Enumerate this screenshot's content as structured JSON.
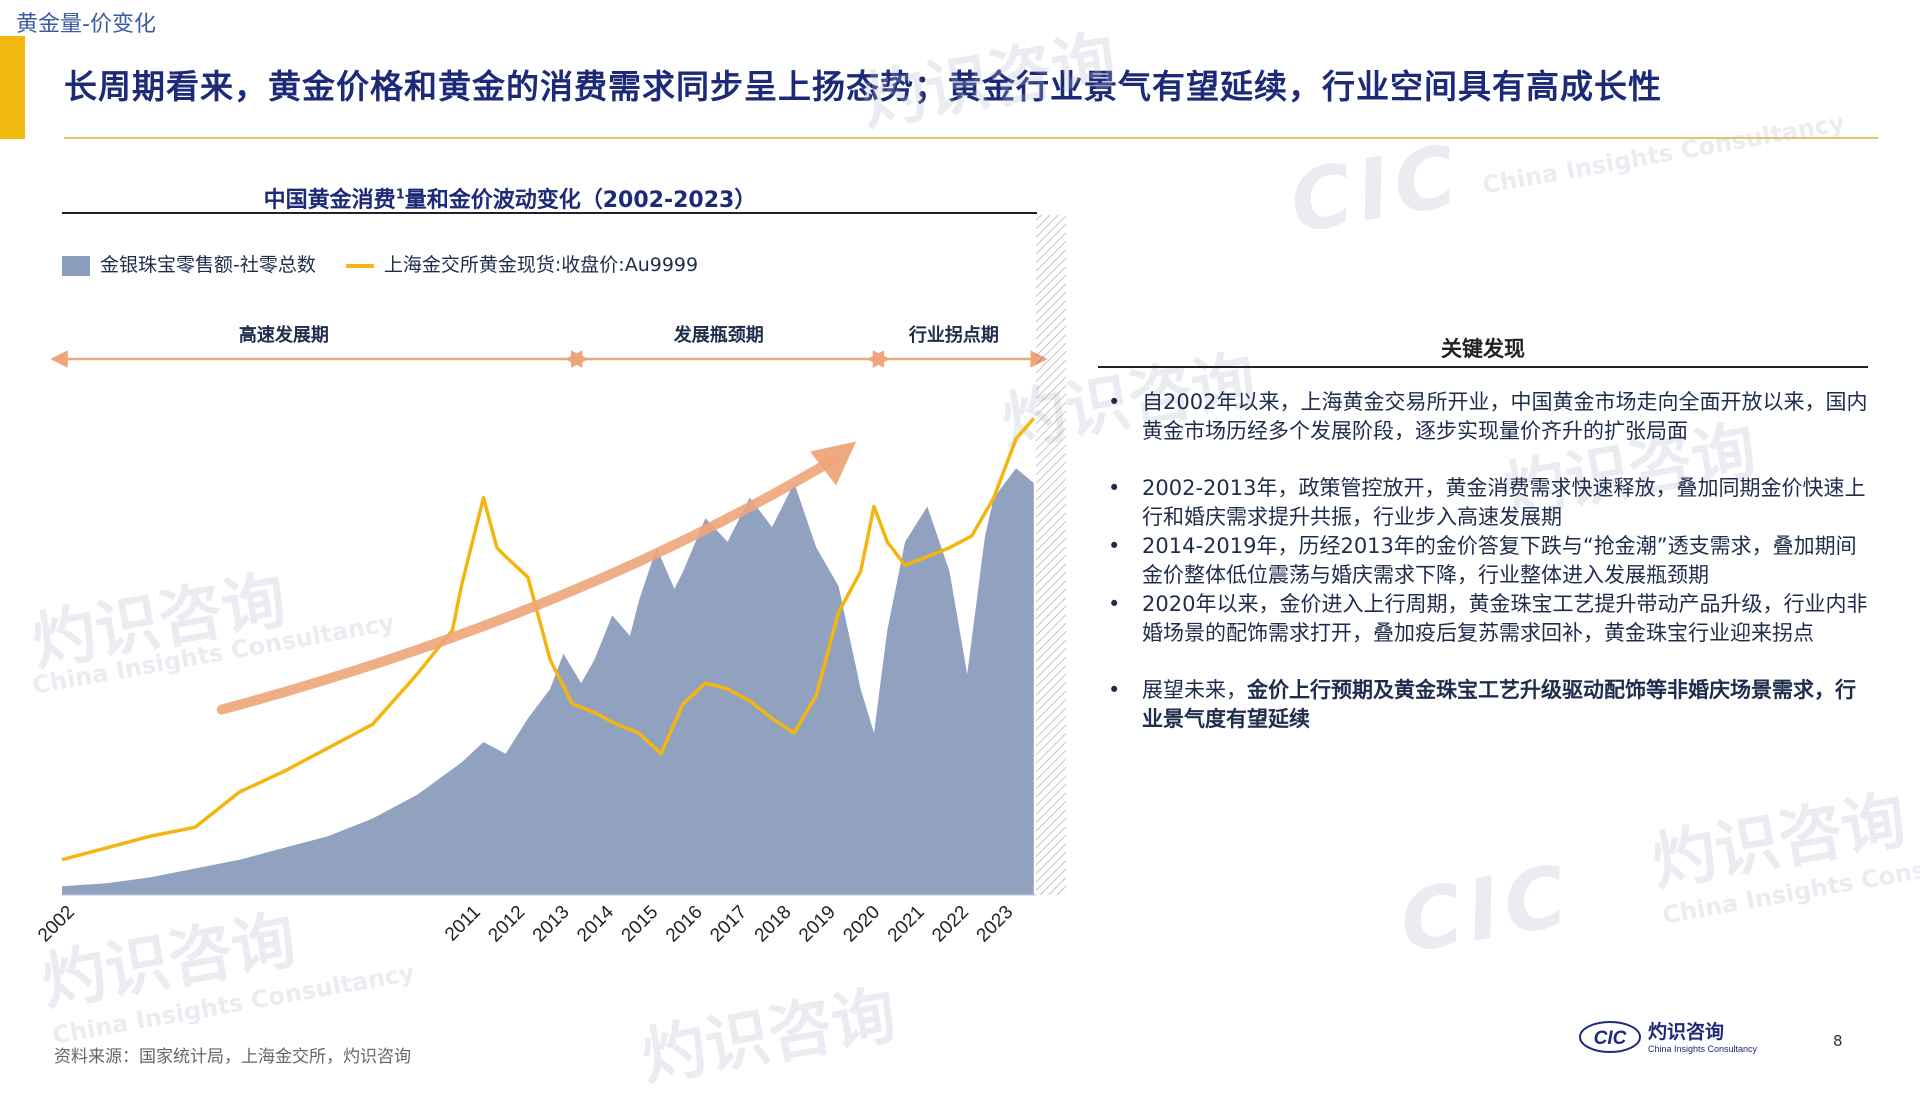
{
  "section_tag": "黄金量-价变化",
  "headline": "长周期看来，黄金价格和黄金的消费需求同步呈上扬态势；黄金行业景气有望延续，行业空间具有高成长性",
  "chart_title": {
    "main": "中国黄金消费",
    "sup": "1",
    "rest": "量和金价波动变化（2002-2023）"
  },
  "chart_data": {
    "type": "area",
    "title": "中国黄金消费1量和金价波动变化（2002-2023）",
    "xlabel": "",
    "ylabel": "",
    "x_ticks": [
      "2002",
      "2011",
      "2012",
      "2013",
      "2014",
      "2015",
      "2016",
      "2017",
      "2018",
      "2019",
      "2020",
      "2021",
      "2022",
      "2023"
    ],
    "series": [
      {
        "name": "金银珠宝零售额-社零总数",
        "type": "area",
        "color": "#8a9dbd",
        "points": [
          [
            2002,
            3
          ],
          [
            2003,
            4
          ],
          [
            2004,
            6
          ],
          [
            2005,
            9
          ],
          [
            2006,
            12
          ],
          [
            2007,
            16
          ],
          [
            2008,
            20
          ],
          [
            2009,
            26
          ],
          [
            2010,
            34
          ],
          [
            2011,
            45
          ],
          [
            2011.5,
            52
          ],
          [
            2012,
            48
          ],
          [
            2012.5,
            60
          ],
          [
            2013,
            70
          ],
          [
            2013.3,
            82
          ],
          [
            2013.7,
            72
          ],
          [
            2014,
            80
          ],
          [
            2014.4,
            95
          ],
          [
            2014.8,
            88
          ],
          [
            2015,
            100
          ],
          [
            2015.4,
            118
          ],
          [
            2015.8,
            104
          ],
          [
            2016,
            110
          ],
          [
            2016.5,
            128
          ],
          [
            2017,
            120
          ],
          [
            2017.5,
            135
          ],
          [
            2018,
            125
          ],
          [
            2018.5,
            140
          ],
          [
            2019,
            118
          ],
          [
            2019.5,
            105
          ],
          [
            2020,
            70
          ],
          [
            2020.3,
            55
          ],
          [
            2020.6,
            90
          ],
          [
            2021,
            120
          ],
          [
            2021.5,
            132
          ],
          [
            2022,
            110
          ],
          [
            2022.4,
            75
          ],
          [
            2022.8,
            122
          ],
          [
            2023,
            135
          ],
          [
            2023.5,
            145
          ],
          [
            2023.9,
            140
          ]
        ]
      },
      {
        "name": "上海金交所黄金现货:收盘价:Au9999",
        "type": "line",
        "color": "#f2b60f",
        "points": [
          [
            2002,
            12
          ],
          [
            2003,
            16
          ],
          [
            2004,
            20
          ],
          [
            2005,
            23
          ],
          [
            2006,
            35
          ],
          [
            2007,
            42
          ],
          [
            2008,
            50
          ],
          [
            2009,
            58
          ],
          [
            2010,
            75
          ],
          [
            2010.8,
            90
          ],
          [
            2011,
            105
          ],
          [
            2011.5,
            135
          ],
          [
            2011.8,
            118
          ],
          [
            2012,
            115
          ],
          [
            2012.5,
            108
          ],
          [
            2013,
            80
          ],
          [
            2013.5,
            65
          ],
          [
            2014,
            62
          ],
          [
            2014.5,
            58
          ],
          [
            2015,
            55
          ],
          [
            2015.5,
            48
          ],
          [
            2016,
            65
          ],
          [
            2016.5,
            72
          ],
          [
            2017,
            70
          ],
          [
            2017.5,
            66
          ],
          [
            2018,
            60
          ],
          [
            2018.5,
            55
          ],
          [
            2019,
            68
          ],
          [
            2019.5,
            96
          ],
          [
            2020,
            110
          ],
          [
            2020.3,
            132
          ],
          [
            2020.6,
            120
          ],
          [
            2021,
            112
          ],
          [
            2021.5,
            115
          ],
          [
            2022,
            118
          ],
          [
            2022.5,
            122
          ],
          [
            2023,
            135
          ],
          [
            2023.5,
            155
          ],
          [
            2023.9,
            162
          ]
        ]
      }
    ],
    "y_range": [
      0,
      175
    ],
    "phases": [
      "高速发展期",
      "发展瓶颈期",
      "行业拐点期"
    ],
    "grid": false,
    "legend_position": "top-left"
  },
  "legend": {
    "area_label": "金银珠宝零售额-社零总数",
    "line_label": "上海金交所黄金现货:收盘价:Au9999"
  },
  "findings": {
    "title": "关键发现",
    "items": [
      {
        "text": "自2002年以来，上海黄金交易所开业，中国黄金市场走向全面开放以来，国内黄金市场历经多个发展阶段，逐步实现量价齐升的扩张局面",
        "gap": false
      },
      {
        "text": "2002-2013年，政策管控放开，黄金消费需求快速释放，叠加同期金价快速上行和婚庆需求提升共振，行业步入高速发展期",
        "gap": true
      },
      {
        "text": "2014-2019年，历经2013年的金价答复下跌与“抢金潮”透支需求，叠加期间金价整体低位震荡与婚庆需求下降，行业整体进入发展瓶颈期",
        "gap": false
      },
      {
        "text": "2020年以来，金价进入上行周期，黄金珠宝工艺提升带动产品升级，行业内非婚场景的配饰需求打开，叠加疫后复苏需求回补，黄金珠宝行业迎来拐点",
        "gap": false
      }
    ],
    "last": {
      "prefix": "展望未来，",
      "strong": "金价上行预期及黄金珠宝工艺升级驱动配饰等非婚庆场景需求，行业景气度有望延续"
    }
  },
  "source": "资料来源：国家统计局，上海金交所，灼识咨询",
  "page_number": "8",
  "logo": {
    "mark": "CIC",
    "cn": "灼识咨询",
    "en": "China Insights Consultancy"
  },
  "watermark": {
    "cn": "灼识咨询",
    "en": "China Insights Consultancy",
    "mark": "CIC"
  },
  "colors": {
    "area": "#8a9dbd",
    "line": "#f2b60f",
    "arrow": "#eea57a",
    "phase": "#eea57a",
    "headline": "#1c2a78"
  }
}
